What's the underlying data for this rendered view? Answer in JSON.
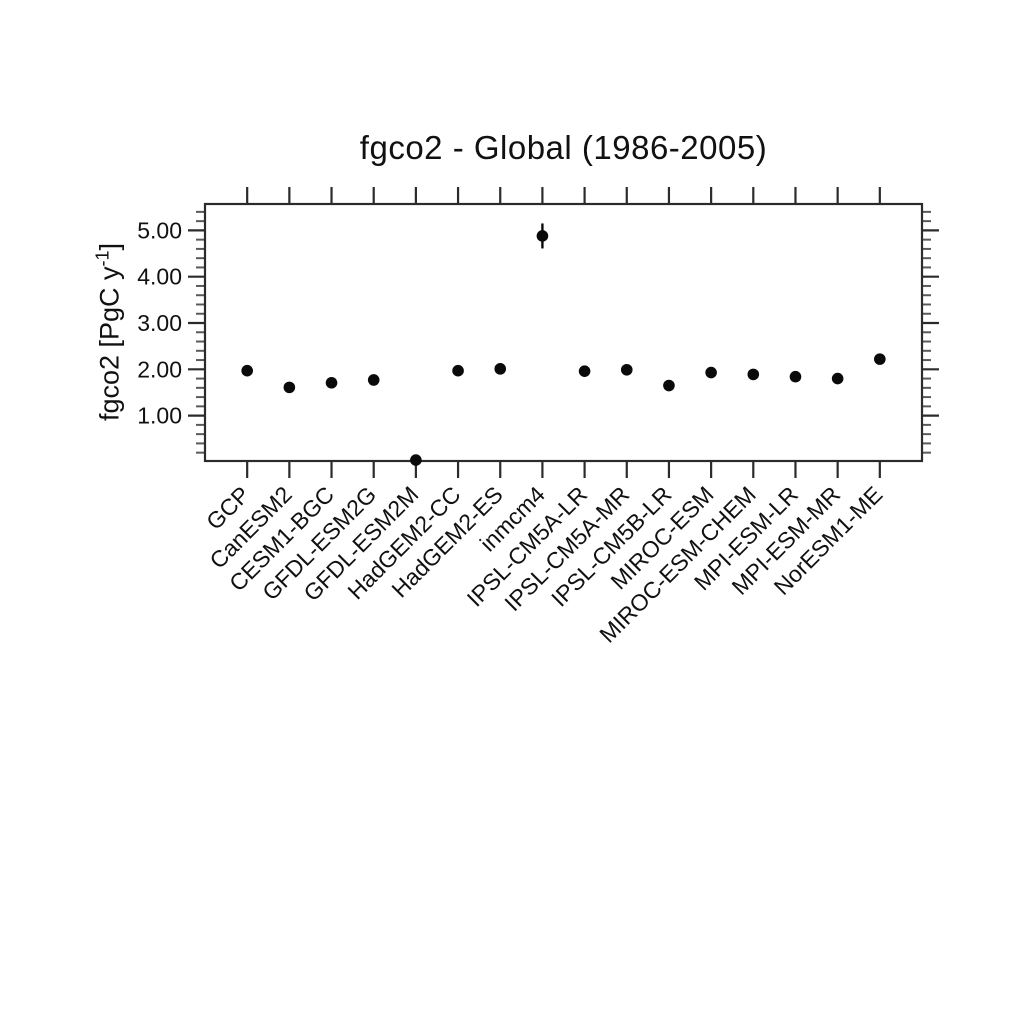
{
  "chart_data": {
    "type": "scatter",
    "title": "fgco2 - Global (1986-2005)",
    "ylabel": "fgco2 [PgC y⁻¹]",
    "ylabel_parts": {
      "prefix": "fgco2 [PgC y",
      "superscript": "-1",
      "suffix": "]"
    },
    "xlabel": "",
    "categories": [
      "GCP",
      "CanESM2",
      "CESM1-BGC",
      "GFDL-ESM2G",
      "GFDL-ESM2M",
      "HadGEM2-CC",
      "HadGEM2-ES",
      "inmcm4",
      "IPSL-CM5A-LR",
      "IPSL-CM5A-MR",
      "IPSL-CM5B-LR",
      "MIROC-ESM",
      "MIROC-ESM-CHEM",
      "MPI-ESM-LR",
      "MPI-ESM-MR",
      "NorESM1-ME"
    ],
    "values": [
      1.97,
      1.61,
      1.71,
      1.77,
      0.04,
      1.97,
      2.01,
      4.88,
      1.96,
      1.99,
      1.65,
      1.93,
      1.89,
      1.84,
      1.8,
      2.22
    ],
    "error_bars": [
      {
        "category": "inmcm4",
        "index": 7,
        "low": 4.61,
        "high": 5.15
      }
    ],
    "y_axis": {
      "tick_values": [
        1,
        2,
        3,
        4,
        5
      ],
      "tick_labels": [
        "1.00",
        "2.00",
        "3.00",
        "4.00",
        "5.00"
      ],
      "minor_tick_step": 0.2,
      "ylim": [
        0.02,
        5.57
      ]
    },
    "x_axis": {
      "label_rotation_deg": 45,
      "ticks_on_top_and_bottom": true
    },
    "marker": {
      "shape": "filled-circle",
      "color": "#0a0a0a",
      "radius_px": 5.8
    },
    "grid": false,
    "legend": null
  },
  "colors": {
    "background": "#ffffff",
    "box": "#2b2b2b",
    "major_tick": "#2b2b2b",
    "minor_tick": "#5a5a5a",
    "text": "#111111",
    "marker": "#0a0a0a"
  }
}
